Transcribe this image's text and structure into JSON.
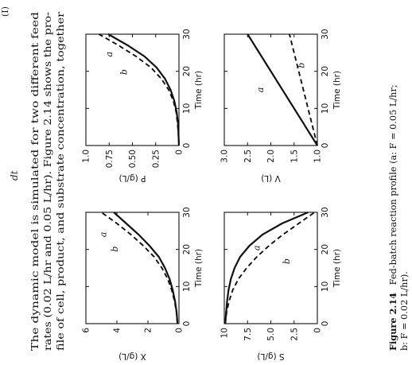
{
  "page": {
    "header_mark": "dt",
    "top_corner": "(I)",
    "paragraph_lines": [
      "The dynamic model is simulated for two different feed",
      "rates (0.02 L/hr and 0.05 L/hr). Figure 2.14 shows the pro-",
      "file of cell, product, and substrate concentration, together"
    ],
    "caption_label": "Figure 2.14",
    "caption_line1": "Fed-batch reaction profile (a: F = 0.05 L/hr;",
    "caption_line2": "b: F = 0.02 L/hr)."
  },
  "chart_data": [
    {
      "type": "line",
      "ylabel": "X (g/L)",
      "xlabel": "Time (hr)",
      "xlim": [
        0,
        30
      ],
      "ylim": [
        0,
        6
      ],
      "yticks": [
        "0",
        "2",
        "4",
        "6"
      ],
      "xticks": [
        "0",
        "10",
        "20",
        "30"
      ],
      "x": [
        0,
        3,
        6,
        9,
        12,
        15,
        18,
        21,
        24,
        27,
        30
      ],
      "series": [
        {
          "name": "a",
          "style": "solid",
          "values": [
            0.1,
            0.15,
            0.25,
            0.4,
            0.6,
            0.9,
            1.3,
            1.9,
            2.6,
            3.4,
            4.2
          ]
        },
        {
          "name": "b",
          "style": "dashed",
          "values": [
            0.1,
            0.16,
            0.28,
            0.46,
            0.72,
            1.1,
            1.6,
            2.3,
            3.1,
            4.0,
            5.0
          ]
        }
      ]
    },
    {
      "type": "line",
      "ylabel": "P (g/L)",
      "xlabel": "Time (hr)",
      "xlim": [
        0,
        30
      ],
      "ylim": [
        0,
        1.0
      ],
      "yticks": [
        "0",
        "0.25",
        "0.50",
        "0.75",
        "1.0"
      ],
      "xticks": [
        "0",
        "10",
        "20",
        "30"
      ],
      "x": [
        0,
        3,
        6,
        9,
        12,
        15,
        18,
        21,
        24,
        27,
        30
      ],
      "series": [
        {
          "name": "a",
          "style": "solid",
          "values": [
            0,
            0.005,
            0.01,
            0.025,
            0.05,
            0.09,
            0.15,
            0.24,
            0.37,
            0.55,
            0.76
          ]
        },
        {
          "name": "b",
          "style": "dashed",
          "values": [
            0,
            0.006,
            0.015,
            0.03,
            0.06,
            0.11,
            0.19,
            0.3,
            0.46,
            0.65,
            0.86
          ]
        }
      ]
    },
    {
      "type": "line",
      "ylabel": "S (g/L)",
      "xlabel": "Time (hr)",
      "xlim": [
        0,
        30
      ],
      "ylim": [
        0,
        10
      ],
      "yticks": [
        "0",
        "2.5",
        "5.0",
        "7.5",
        "10"
      ],
      "xticks": [
        "0",
        "10",
        "20",
        "30"
      ],
      "x": [
        0,
        3,
        6,
        9,
        12,
        15,
        18,
        21,
        24,
        27,
        30
      ],
      "series": [
        {
          "name": "a",
          "style": "solid",
          "values": [
            9.9,
            9.8,
            9.7,
            9.55,
            9.3,
            8.9,
            8.3,
            7.3,
            5.9,
            3.8,
            1.0
          ]
        },
        {
          "name": "b",
          "style": "dashed",
          "values": [
            9.9,
            9.75,
            9.5,
            9.1,
            8.5,
            7.6,
            6.5,
            5.2,
            3.7,
            2.0,
            0.3
          ]
        }
      ]
    },
    {
      "type": "line",
      "ylabel": "V (L)",
      "xlabel": "Time (hr)",
      "xlim": [
        0,
        30
      ],
      "ylim": [
        1.0,
        3.0
      ],
      "yticks": [
        "1.0",
        "1.5",
        "2.0",
        "2.5",
        "3.0"
      ],
      "xticks": [
        "0",
        "10",
        "20",
        "30"
      ],
      "x": [
        0,
        30
      ],
      "series": [
        {
          "name": "a",
          "style": "solid",
          "values": [
            1.0,
            2.5
          ]
        },
        {
          "name": "b",
          "style": "dashed",
          "values": [
            1.0,
            1.6
          ]
        }
      ]
    }
  ]
}
